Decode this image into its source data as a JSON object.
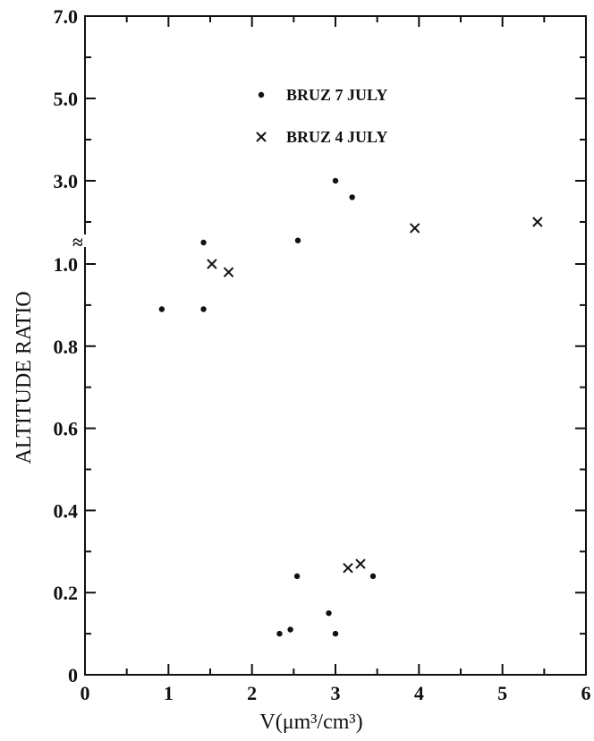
{
  "chart_data": {
    "type": "scatter",
    "title": "",
    "xlabel": "V(μm³/cm³)",
    "ylabel": "ALTITUDE RATIO",
    "xlim": [
      0,
      6
    ],
    "x_ticks": [
      "0",
      "1",
      "2",
      "3",
      "4",
      "5",
      "6"
    ],
    "y_axis": {
      "break_symbol": "≈",
      "tick_labels": [
        "0",
        "0.2",
        "0.4",
        "0.6",
        "0.8",
        "1.0",
        "3.0",
        "5.0",
        "7.0"
      ],
      "lower_segment": {
        "range": [
          0,
          1.0
        ],
        "step": 0.1,
        "labeled_every": 0.2
      },
      "upper_segment": {
        "range": [
          1.0,
          7.0
        ],
        "step": 1.0,
        "labeled": [
          3.0,
          5.0,
          7.0
        ]
      }
    },
    "grid": false,
    "legend": {
      "position": "top-center"
    },
    "series": [
      {
        "name": "BRUZ 7 JULY",
        "marker": "dot",
        "points": [
          {
            "x": 0.92,
            "y": 0.89
          },
          {
            "x": 1.42,
            "y": 0.89
          },
          {
            "x": 1.42,
            "y": 1.5
          },
          {
            "x": 2.55,
            "y": 1.55
          },
          {
            "x": 3.0,
            "y": 3.0
          },
          {
            "x": 3.2,
            "y": 2.6
          },
          {
            "x": 2.33,
            "y": 0.1
          },
          {
            "x": 2.46,
            "y": 0.11
          },
          {
            "x": 2.92,
            "y": 0.15
          },
          {
            "x": 3.0,
            "y": 0.1
          },
          {
            "x": 2.54,
            "y": 0.24
          },
          {
            "x": 3.45,
            "y": 0.24
          }
        ]
      },
      {
        "name": "BRUZ 4 JULY",
        "marker": "cross",
        "points": [
          {
            "x": 1.52,
            "y": 1.0
          },
          {
            "x": 1.72,
            "y": 0.98
          },
          {
            "x": 3.95,
            "y": 1.85
          },
          {
            "x": 5.42,
            "y": 2.0
          },
          {
            "x": 3.15,
            "y": 0.26
          },
          {
            "x": 3.3,
            "y": 0.27
          }
        ]
      }
    ]
  }
}
